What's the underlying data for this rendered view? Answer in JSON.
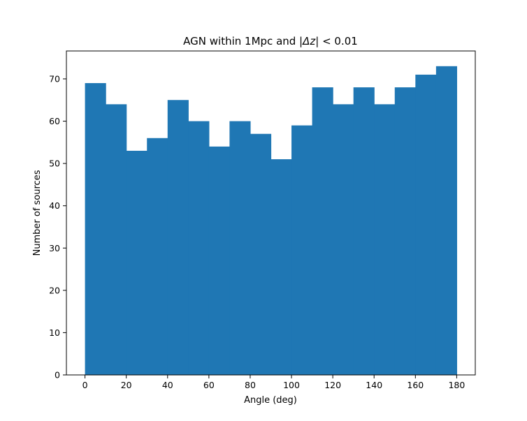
{
  "chart_data": {
    "type": "bar",
    "title_prefix": "AGN within 1Mpc and |",
    "title_symbol": "Δz",
    "title_suffix": "| < 0.01",
    "xlabel": "Angle (deg)",
    "ylabel": "Number of sources",
    "bin_edges": [
      0,
      10,
      20,
      30,
      40,
      50,
      60,
      70,
      80,
      90,
      100,
      110,
      120,
      130,
      140,
      150,
      160,
      170,
      180
    ],
    "values": [
      69,
      64,
      53,
      56,
      65,
      60,
      54,
      60,
      57,
      51,
      59,
      68,
      64,
      68,
      64,
      68,
      71,
      73
    ],
    "xlim": [
      -9,
      189
    ],
    "ylim": [
      0,
      76.6
    ],
    "xticks": [
      0,
      20,
      40,
      60,
      80,
      100,
      120,
      140,
      160,
      180
    ],
    "yticks": [
      0,
      10,
      20,
      30,
      40,
      50,
      60,
      70
    ],
    "bar_color": "#1f77b4",
    "grid": false
  }
}
